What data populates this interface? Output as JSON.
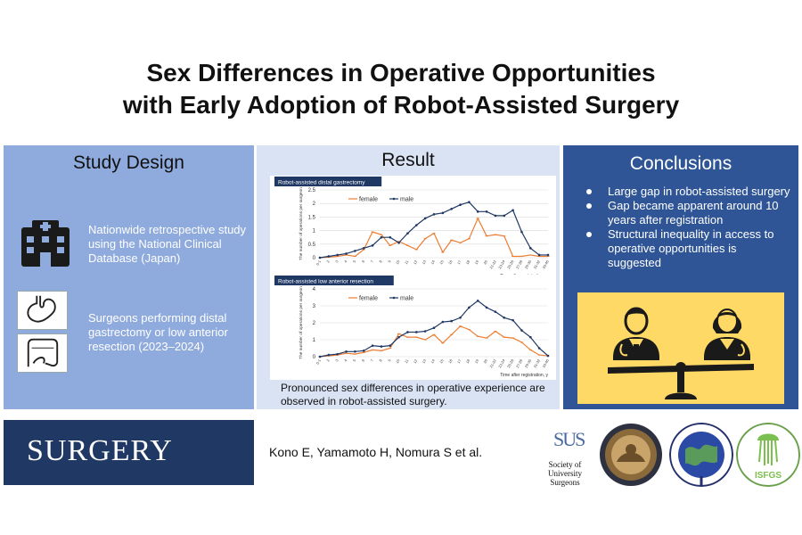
{
  "title": {
    "line1": "Sex Differences in Operative Opportunities",
    "line2": "with Early Adoption of Robot-Assisted Surgery"
  },
  "study_design": {
    "heading": "Study Design",
    "item1": "Nationwide retrospective study using the National Clinical Database (Japan)",
    "item2": "Surgeons performing distal gastrectomy or low anterior resection (2023–2024)",
    "icons": [
      "hospital-icon",
      "stomach-icon",
      "colon-icon"
    ]
  },
  "result": {
    "heading": "Result",
    "caption": "Pronounced sex differences in operative experience are observed in robot-assisted surgery."
  },
  "conclusions": {
    "heading": "Conclusions",
    "items": [
      "Large gap in robot-assisted surgery",
      "Gap became apparent around 10 years after registration",
      " Structural inequality in access to operative opportunities is suggested"
    ],
    "illustration_icons": [
      "female-doctor-icon",
      "male-doctor-icon",
      "balance-scale-icon"
    ]
  },
  "footer": {
    "journal": "SURGERY",
    "authors": "Kono E, Yamamoto H, Nomura S et al.",
    "sus_logo_mark": "SUS",
    "sus_logo_text_line1": "Society of",
    "sus_logo_text_line2": "University Surgeons",
    "seal_logos": [
      "central-surgical-association-seal",
      "american-association-of-endocrine-surgeons-seal",
      "isfgs-seal"
    ],
    "isfgs_text": "ISFGS"
  },
  "colors": {
    "design_bg": "#8faadc",
    "result_bg": "#dae3f3",
    "conclusions_bg": "#2f5597",
    "journal_bg": "#203864",
    "illustration_bg": "#ffd966",
    "female_series": "#ed7d31",
    "male_series": "#1f3864"
  },
  "chart_data": [
    {
      "type": "line",
      "title": "Robot-assisted distal gastrectomy",
      "ylabel": "The number of operations per surgeon",
      "xlabel": "Time after registration, y",
      "ylim": [
        0,
        2.5
      ],
      "yticks": [
        "0",
        "0.5",
        "1",
        "1.5",
        "2",
        "2.5"
      ],
      "categories": [
        "0-1",
        "2",
        "3",
        "4",
        "5",
        "6",
        "7",
        "8",
        "9",
        "10",
        "11",
        "12",
        "13",
        "14",
        "15",
        "16",
        "17",
        "18",
        "19",
        "20",
        "21-22",
        "23-24",
        "25-26",
        "27-28",
        "29-30",
        "31-32",
        "33-40"
      ],
      "legend_position": "top",
      "series": [
        {
          "name": "female",
          "color": "#ed7d31",
          "values": [
            0,
            0.02,
            0.05,
            0.1,
            0.05,
            0.3,
            0.95,
            0.85,
            0.45,
            0.6,
            0.45,
            0.3,
            0.7,
            0.9,
            0.2,
            0.65,
            0.55,
            0.7,
            1.45,
            0.8,
            0.85,
            0.8,
            0.05,
            0.05,
            0.1,
            0.05,
            0.05
          ]
        },
        {
          "name": "male",
          "color": "#1f3864",
          "values": [
            0,
            0.05,
            0.1,
            0.15,
            0.25,
            0.35,
            0.45,
            0.75,
            0.75,
            0.55,
            0.9,
            1.2,
            1.45,
            1.6,
            1.65,
            1.8,
            1.95,
            2.05,
            1.7,
            1.7,
            1.55,
            1.55,
            1.75,
            0.95,
            0.35,
            0.1,
            0.1
          ]
        }
      ]
    },
    {
      "type": "line",
      "title": "Robot-assisted low anterior resection",
      "ylabel": "The number of operations per surgeon",
      "xlabel": "Time after registration, y",
      "ylim": [
        0,
        4
      ],
      "yticks": [
        "0",
        "1",
        "2",
        "3",
        "4"
      ],
      "categories": [
        "0-1",
        "2",
        "3",
        "4",
        "5",
        "6",
        "7",
        "8",
        "9",
        "10",
        "11",
        "12",
        "13",
        "14",
        "15",
        "16",
        "17",
        "18",
        "19",
        "20",
        "21-22",
        "23-24",
        "25-26",
        "27-28",
        "29-30",
        "31-32",
        "33-40"
      ],
      "legend_position": "top",
      "series": [
        {
          "name": "female",
          "color": "#ed7d31",
          "values": [
            0,
            0.05,
            0.1,
            0.2,
            0.15,
            0.25,
            0.4,
            0.35,
            0.5,
            1.35,
            1.15,
            1.15,
            1.0,
            1.3,
            0.8,
            1.3,
            1.8,
            1.6,
            1.2,
            1.1,
            1.5,
            1.15,
            1.1,
            0.85,
            0.4,
            0.1,
            0.05
          ]
        },
        {
          "name": "male",
          "color": "#1f3864",
          "values": [
            0,
            0.1,
            0.15,
            0.3,
            0.3,
            0.35,
            0.65,
            0.6,
            0.65,
            1.15,
            1.45,
            1.45,
            1.5,
            1.7,
            2.05,
            2.1,
            2.3,
            2.9,
            3.3,
            2.9,
            2.65,
            2.3,
            2.15,
            1.55,
            1.15,
            0.5,
            0.05
          ]
        }
      ]
    }
  ]
}
